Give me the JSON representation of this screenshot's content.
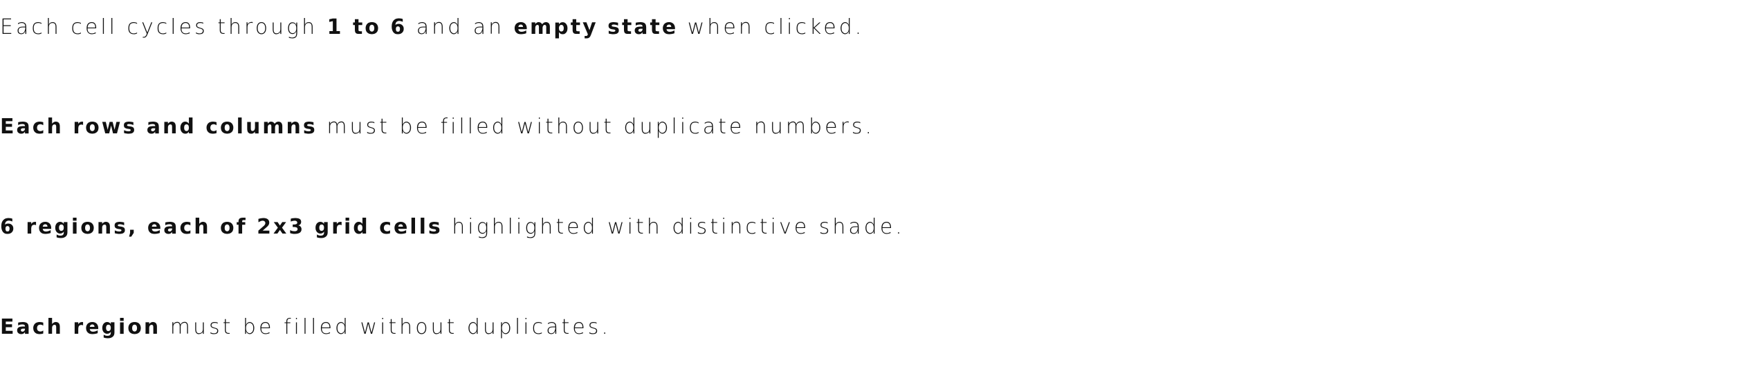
{
  "rules": [
    {
      "segments": [
        {
          "text": "Each cell cycles through ",
          "bold": false
        },
        {
          "text": "1 to 6",
          "bold": true
        },
        {
          "text": " and an ",
          "bold": false
        },
        {
          "text": "empty state",
          "bold": true
        },
        {
          "text": " when clicked.",
          "bold": false
        }
      ]
    },
    {
      "segments": [
        {
          "text": "Each rows and columns",
          "bold": true
        },
        {
          "text": " must be filled without duplicate numbers.",
          "bold": false
        }
      ]
    },
    {
      "segments": [
        {
          "text": "6 regions, each of 2x3 grid cells",
          "bold": true
        },
        {
          "text": " highlighted with distinctive shade.",
          "bold": false
        }
      ]
    },
    {
      "segments": [
        {
          "text": "Each region",
          "bold": true
        },
        {
          "text": " must be filled without duplicates.",
          "bold": false
        }
      ]
    }
  ]
}
